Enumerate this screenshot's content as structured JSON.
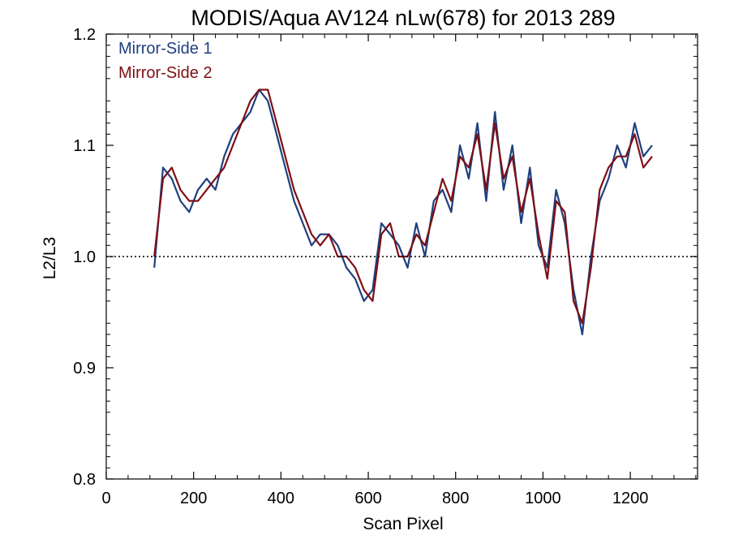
{
  "chart_data": {
    "type": "line",
    "title": "MODIS/Aqua AV124 nLw(678) for 2013 289",
    "xlabel": "Scan Pixel",
    "ylabel": "L2/L3",
    "xlim": [
      0,
      1354
    ],
    "ylim": [
      0.8,
      1.2
    ],
    "xticks": [
      0,
      200,
      400,
      600,
      800,
      1000,
      1200
    ],
    "xtick_labels": [
      "0",
      "200",
      "400",
      "600",
      "800",
      "1000",
      "1200"
    ],
    "yticks": [
      0.8,
      0.9,
      1.0,
      1.1,
      1.2
    ],
    "ytick_labels": [
      "0.8",
      "0.9",
      "1.0",
      "1.1",
      "1.2"
    ],
    "reference_line": {
      "y": 1.0,
      "style": "dotted"
    },
    "legend_position": "top-left",
    "grid": false,
    "series": [
      {
        "name": "Mirror-Side 1",
        "color": "#1f3f7f",
        "x": [
          110,
          130,
          150,
          170,
          190,
          210,
          230,
          250,
          270,
          290,
          310,
          330,
          350,
          370,
          390,
          410,
          430,
          450,
          470,
          490,
          510,
          530,
          550,
          570,
          590,
          610,
          630,
          650,
          670,
          690,
          710,
          730,
          750,
          770,
          790,
          810,
          830,
          850,
          870,
          890,
          910,
          930,
          950,
          970,
          990,
          1010,
          1030,
          1050,
          1070,
          1090,
          1110,
          1130,
          1150,
          1170,
          1190,
          1210,
          1230,
          1250
        ],
        "y": [
          0.99,
          1.08,
          1.07,
          1.05,
          1.04,
          1.06,
          1.07,
          1.06,
          1.09,
          1.11,
          1.12,
          1.13,
          1.15,
          1.14,
          1.11,
          1.08,
          1.05,
          1.03,
          1.01,
          1.02,
          1.02,
          1.01,
          0.99,
          0.98,
          0.96,
          0.97,
          1.03,
          1.02,
          1.01,
          0.99,
          1.03,
          1.0,
          1.05,
          1.06,
          1.04,
          1.1,
          1.07,
          1.12,
          1.05,
          1.13,
          1.06,
          1.1,
          1.03,
          1.08,
          1.01,
          0.99,
          1.06,
          1.03,
          0.97,
          0.93,
          1.0,
          1.05,
          1.07,
          1.1,
          1.08,
          1.12,
          1.09,
          1.1
        ]
      },
      {
        "name": "Mirror-Side 2",
        "color": "#7f0f14",
        "x": [
          110,
          130,
          150,
          170,
          190,
          210,
          230,
          250,
          270,
          290,
          310,
          330,
          350,
          370,
          390,
          410,
          430,
          450,
          470,
          490,
          510,
          530,
          550,
          570,
          590,
          610,
          630,
          650,
          670,
          690,
          710,
          730,
          750,
          770,
          790,
          810,
          830,
          850,
          870,
          890,
          910,
          930,
          950,
          970,
          990,
          1010,
          1030,
          1050,
          1070,
          1090,
          1110,
          1130,
          1150,
          1170,
          1190,
          1210,
          1230,
          1250
        ],
        "y": [
          1.0,
          1.07,
          1.08,
          1.06,
          1.05,
          1.05,
          1.06,
          1.07,
          1.08,
          1.1,
          1.12,
          1.14,
          1.15,
          1.15,
          1.12,
          1.09,
          1.06,
          1.04,
          1.02,
          1.01,
          1.02,
          1.0,
          1.0,
          0.99,
          0.97,
          0.96,
          1.02,
          1.03,
          1.0,
          1.0,
          1.02,
          1.01,
          1.04,
          1.07,
          1.05,
          1.09,
          1.08,
          1.11,
          1.06,
          1.12,
          1.07,
          1.09,
          1.04,
          1.07,
          1.02,
          0.98,
          1.05,
          1.04,
          0.96,
          0.94,
          0.99,
          1.06,
          1.08,
          1.09,
          1.09,
          1.11,
          1.08,
          1.09
        ]
      }
    ]
  }
}
